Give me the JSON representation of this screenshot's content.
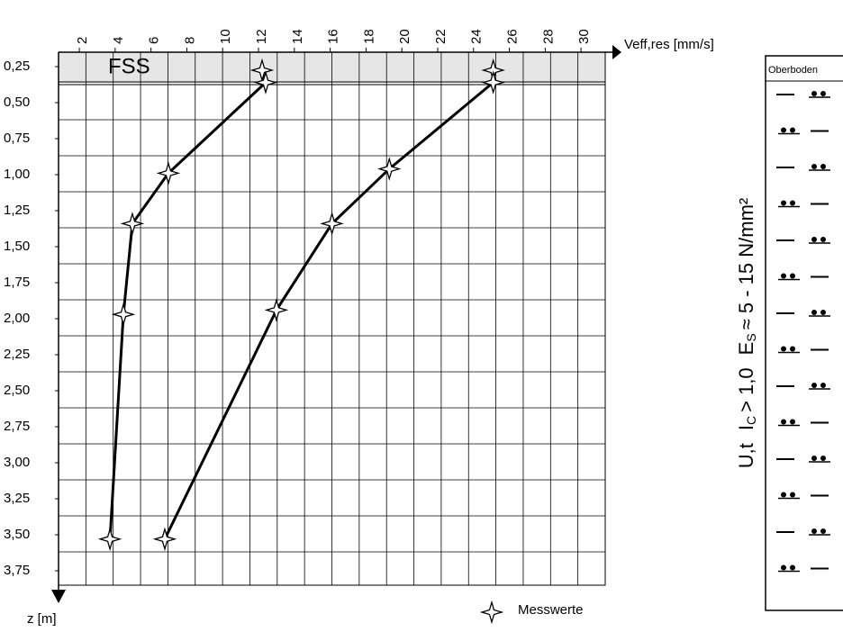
{
  "chart_data": {
    "type": "line",
    "x_label": "Veff,res [mm/s]",
    "y_label": "z [m]",
    "annotation": "FSS",
    "legend_label": "Messwerte",
    "xlim": [
      0.84,
      31.35
    ],
    "xticks": [
      2,
      4,
      6,
      8,
      10,
      12,
      14,
      16,
      18,
      20,
      22,
      24,
      26,
      28,
      30
    ],
    "ylim": [
      0.15,
      3.85
    ],
    "y_inverted": true,
    "yticks": [
      {
        "value": 0.25,
        "label": "0,25"
      },
      {
        "value": 0.5,
        "label": "0,50"
      },
      {
        "value": 0.75,
        "label": "0,75"
      },
      {
        "value": 1.0,
        "label": "1,00"
      },
      {
        "value": 1.25,
        "label": "1,25"
      },
      {
        "value": 1.5,
        "label": "1,50"
      },
      {
        "value": 1.75,
        "label": "1,75"
      },
      {
        "value": 2.0,
        "label": "2,00"
      },
      {
        "value": 2.25,
        "label": "2,25"
      },
      {
        "value": 2.5,
        "label": "2,50"
      },
      {
        "value": 2.75,
        "label": "2,75"
      },
      {
        "value": 3.0,
        "label": "3,00"
      },
      {
        "value": 3.25,
        "label": "3,25"
      },
      {
        "value": 3.5,
        "label": "3,50"
      },
      {
        "value": 3.75,
        "label": "3,75"
      }
    ],
    "series": [
      {
        "color": "#000000",
        "x": [
          12.2,
          12.4,
          6.97,
          4.96,
          4.46,
          3.71
        ],
        "values": [
          0.275,
          0.36,
          0.99,
          1.34,
          1.97,
          3.53
        ]
      },
      {
        "color": "#000000",
        "x": [
          25.1,
          25.1,
          19.3,
          16.1,
          13.0,
          6.77
        ],
        "values": [
          0.275,
          0.36,
          0.96,
          1.34,
          1.94,
          3.53
        ]
      }
    ],
    "profile": {
      "header": "Oberboden",
      "soil": "U,t",
      "ic_symbol": "I",
      "ic_sub": "C",
      "ic_text": "> 1,0",
      "es_symbol": "E",
      "es_sub": "S",
      "es_text": "≈ 5 - 15 N/mm²"
    }
  }
}
